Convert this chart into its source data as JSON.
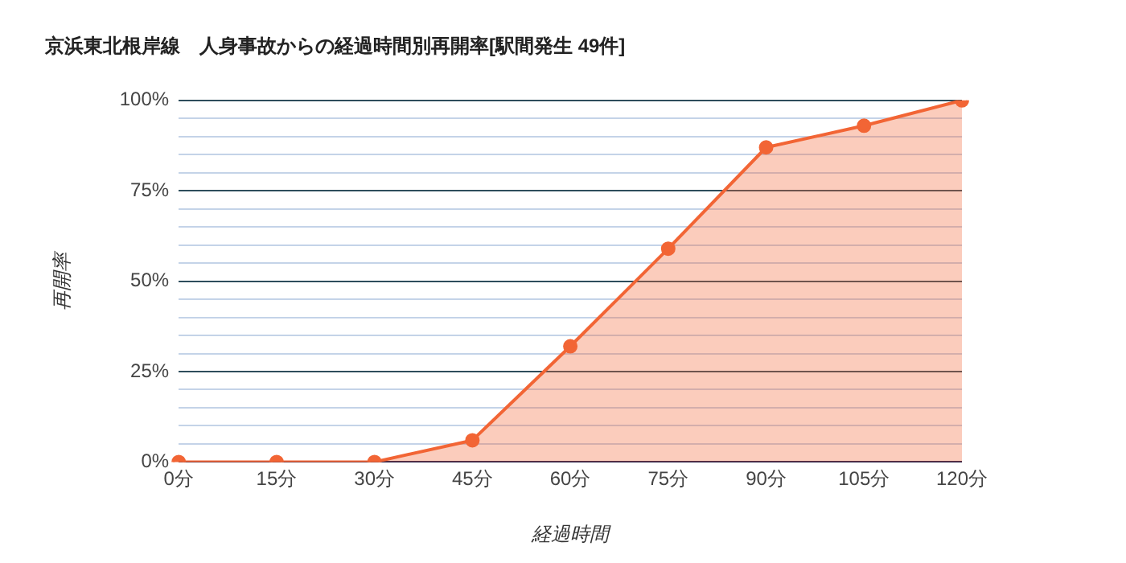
{
  "chart_data": {
    "type": "area",
    "title": "京浜東北根岸線　人身事故からの経過時間別再開率[駅間発生 49件]",
    "xlabel": "経過時間",
    "ylabel": "再開率",
    "categories": [
      "0分",
      "15分",
      "30分",
      "45分",
      "60分",
      "75分",
      "90分",
      "105分",
      "120分"
    ],
    "series": [
      {
        "color": "#f26535",
        "values": [
          0,
          0,
          0,
          6,
          32,
          59,
          87,
          93,
          100
        ]
      }
    ],
    "ylim": [
      0,
      100
    ],
    "yticks": [
      {
        "value": 0,
        "label": "0%"
      },
      {
        "value": 5,
        "label": null
      },
      {
        "value": 10,
        "label": null
      },
      {
        "value": 15,
        "label": null
      },
      {
        "value": 20,
        "label": null
      },
      {
        "value": 25,
        "label": "25%"
      },
      {
        "value": 30,
        "label": null
      },
      {
        "value": 35,
        "label": null
      },
      {
        "value": 40,
        "label": null
      },
      {
        "value": 45,
        "label": null
      },
      {
        "value": 50,
        "label": "50%"
      },
      {
        "value": 55,
        "label": null
      },
      {
        "value": 60,
        "label": null
      },
      {
        "value": 65,
        "label": null
      },
      {
        "value": 70,
        "label": null
      },
      {
        "value": 75,
        "label": "75%"
      },
      {
        "value": 80,
        "label": null
      },
      {
        "value": 85,
        "label": null
      },
      {
        "value": 90,
        "label": null
      },
      {
        "value": 95,
        "label": null
      },
      {
        "value": 100,
        "label": "100%"
      }
    ],
    "grid": "y",
    "legend": false,
    "marker": "circle",
    "line_style": "solid"
  }
}
